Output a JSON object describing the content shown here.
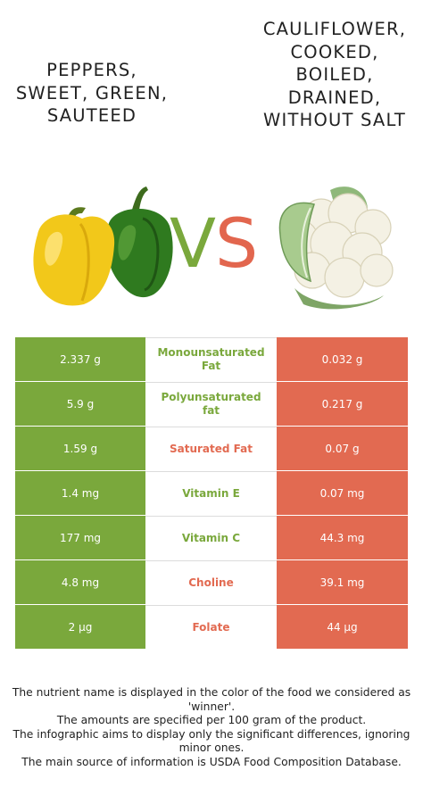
{
  "left_food": {
    "title": "PEPPERS, SWEET, GREEN, SAUTEED"
  },
  "right_food": {
    "title": "CAULIFLOWER, COOKED, BOILED, DRAINED, WITHOUT SALT"
  },
  "vs": {
    "v": "V",
    "s": "S"
  },
  "colors": {
    "green": "#7aa83c",
    "red": "#e26a51"
  },
  "rows": [
    {
      "left": "2.337 g",
      "nutrient": "Monounsaturated Fat",
      "right": "0.032 g",
      "winner": "left"
    },
    {
      "left": "5.9 g",
      "nutrient": "Polyunsaturated fat",
      "right": "0.217 g",
      "winner": "left"
    },
    {
      "left": "1.59 g",
      "nutrient": "Saturated Fat",
      "right": "0.07 g",
      "winner": "right"
    },
    {
      "left": "1.4 mg",
      "nutrient": "Vitamin E",
      "right": "0.07 mg",
      "winner": "left"
    },
    {
      "left": "177 mg",
      "nutrient": "Vitamin C",
      "right": "44.3 mg",
      "winner": "left"
    },
    {
      "left": "4.8 mg",
      "nutrient": "Choline",
      "right": "39.1 mg",
      "winner": "right"
    },
    {
      "left": "2 µg",
      "nutrient": "Folate",
      "right": "44 µg",
      "winner": "right"
    }
  ],
  "footer": [
    "The nutrient name is displayed in the color of the food we considered as 'winner'.",
    "The amounts are specified per 100 gram of the product.",
    "The infographic aims to display only the significant differences, ignoring minor ones.",
    "The main source of information is USDA Food Composition Database."
  ]
}
